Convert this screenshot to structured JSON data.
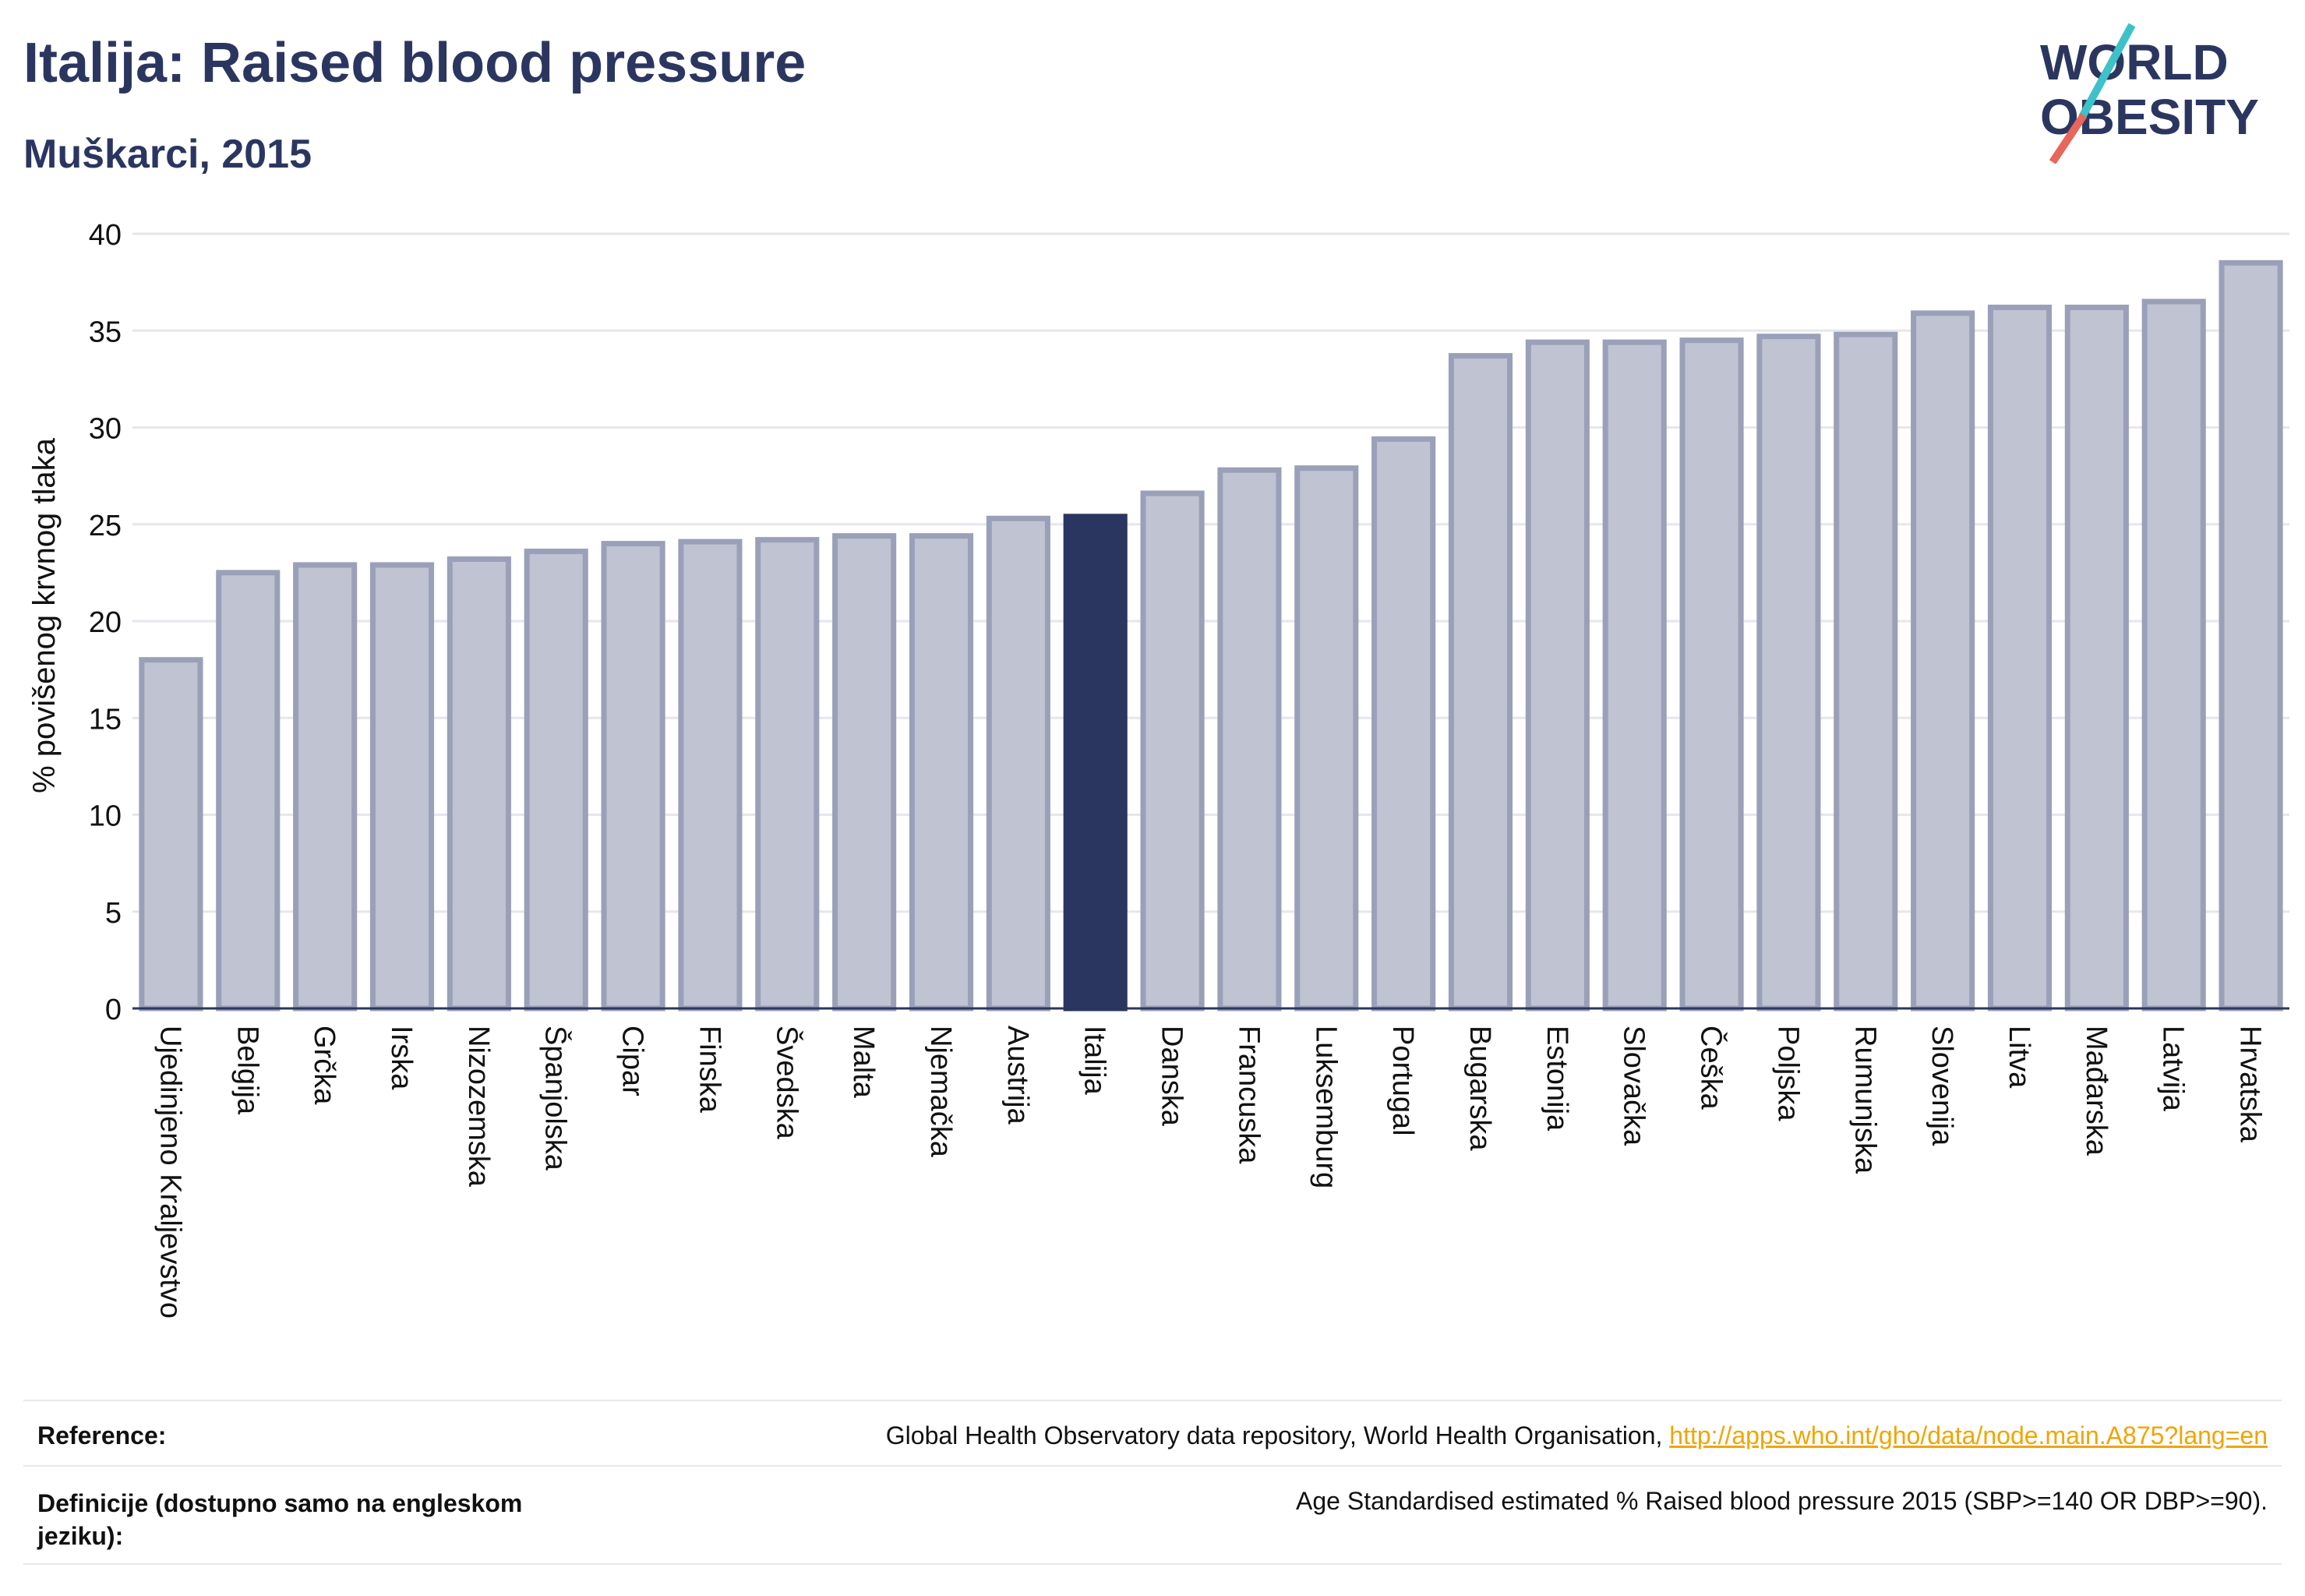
{
  "header": {
    "title": "Italija: Raised blood pressure",
    "subtitle": "Muškarci, 2015"
  },
  "logo": {
    "line1": "WORLD",
    "line2": "OBESITY",
    "color_text": "#2b3660",
    "color_slash_top": "#3ec1c9",
    "color_slash_bottom": "#e8665a"
  },
  "colors": {
    "bar": "#bfc3d2",
    "bar_border": "#9aa0b8",
    "highlight": "#2b3660",
    "grid": "#e6e6ee",
    "axis": "#2b3660"
  },
  "chart_data": {
    "type": "bar",
    "ylabel": "% povišenog krvnog tlaka",
    "ylim": [
      0,
      40
    ],
    "yticks": [
      0,
      5,
      10,
      15,
      20,
      25,
      30,
      35,
      40
    ],
    "grid": true,
    "highlight": "Italija",
    "categories": [
      "Ujedinjeno Kraljevstvo",
      "Belgija",
      "Grčka",
      "Irska",
      "Nizozemska",
      "Španjolska",
      "Cipar",
      "Finska",
      "Švedska",
      "Malta",
      "Njemačka",
      "Austrija",
      "Italija",
      "Danska",
      "Francuska",
      "Luksemburg",
      "Portugal",
      "Bugarska",
      "Estonija",
      "Slovačka",
      "Češka",
      "Poljska",
      "Rumunjska",
      "Slovenija",
      "Litva",
      "Mađarska",
      "Latvija",
      "Hrvatska"
    ],
    "values": [
      18.0,
      22.5,
      22.9,
      22.9,
      23.2,
      23.6,
      24.0,
      24.1,
      24.2,
      24.4,
      24.4,
      25.3,
      25.4,
      26.6,
      27.8,
      27.9,
      29.4,
      33.7,
      34.4,
      34.4,
      34.5,
      34.7,
      34.8,
      35.9,
      36.2,
      36.2,
      36.5,
      38.5
    ]
  },
  "footer": {
    "reference_label": "Reference:",
    "reference_text": "Global Health Observatory data repository, World Health Organisation,",
    "reference_link": "http://apps.who.int/gho/data/node.main.A875?lang=en",
    "definition_label_line1": "Definicije (dostupno samo na engleskom",
    "definition_label_line2": "jeziku):",
    "definition_text": "Age Standardised estimated % Raised blood pressure 2015 (SBP>=140 OR DBP>=90)."
  }
}
